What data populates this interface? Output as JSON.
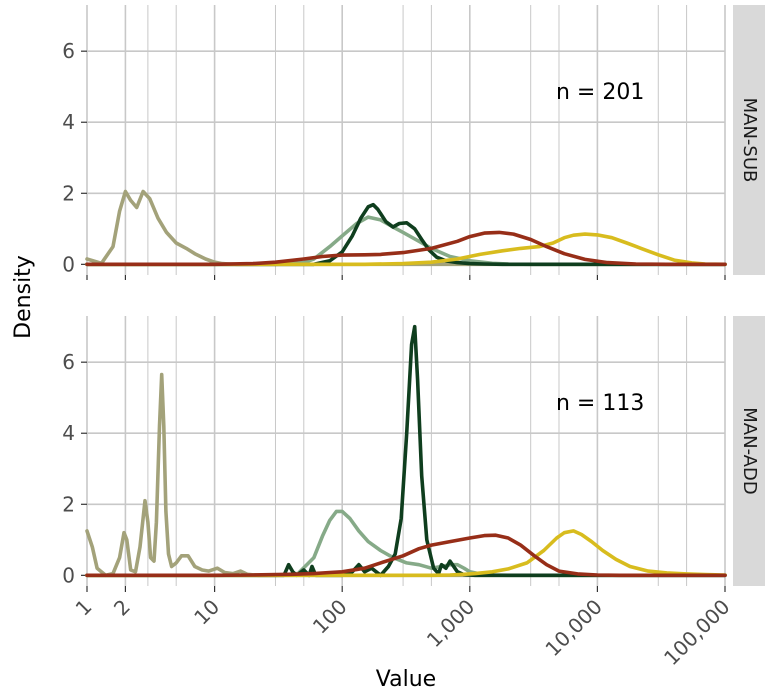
{
  "chart_data": {
    "type": "area",
    "xlabel": "Value",
    "ylabel": "Density",
    "xscale": "log",
    "xlim": [
      1,
      100000
    ],
    "ylim": [
      -0.3,
      7.3
    ],
    "x_ticks": [
      1,
      2,
      10,
      100,
      1000,
      10000,
      100000
    ],
    "x_tick_labels": [
      "1",
      "2",
      "10",
      "100",
      "1,000",
      "10,000",
      "100,000"
    ],
    "y_ticks": [
      0,
      2,
      4,
      6
    ],
    "y_tick_labels": [
      "0",
      "2",
      "4",
      "6"
    ],
    "grid": true,
    "colors": {
      "olive": "#a3a27a",
      "darkgreen": "#0f3e1e",
      "sage": "#86aa88",
      "gold": "#d8bc1e",
      "rust": "#972e18",
      "strip_bg": "#d9d9d9",
      "grid": "#c8c8c8"
    },
    "panels": [
      {
        "strip": "MAN-SUB",
        "annotation": "n = 201",
        "series": [
          {
            "color": "olive",
            "x": [
              1,
              1.3,
              1.6,
              1.8,
              2,
              2.2,
              2.45,
              2.75,
              3.1,
              3.6,
              4.2,
              5,
              6,
              7,
              8.5,
              10,
              11.5,
              13,
              15,
              20,
              30,
              100,
              100000
            ],
            "y": [
              0.15,
              0.03,
              0.5,
              1.5,
              2.05,
              1.8,
              1.6,
              2.05,
              1.85,
              1.3,
              0.9,
              0.6,
              0.45,
              0.3,
              0.15,
              0.06,
              0.02,
              0.01,
              0,
              0,
              0,
              0,
              0
            ]
          },
          {
            "color": "sage",
            "x": [
              1,
              30,
              40,
              50,
              60,
              80,
              100,
              130,
              160,
              200,
              250,
              300,
              400,
              500,
              700,
              1000,
              1500,
              2000,
              3000,
              100000
            ],
            "y": [
              0,
              0,
              0.02,
              0.05,
              0.15,
              0.5,
              0.8,
              1.15,
              1.33,
              1.25,
              1.05,
              0.9,
              0.65,
              0.45,
              0.22,
              0.1,
              0.03,
              0.01,
              0,
              0
            ]
          },
          {
            "color": "darkgreen",
            "x": [
              1,
              60,
              80,
              100,
              120,
              140,
              160,
              175,
              190,
              220,
              250,
              280,
              320,
              370,
              420,
              480,
              550,
              650,
              800,
              1000,
              1300,
              1800,
              100000
            ],
            "y": [
              0,
              0,
              0.1,
              0.35,
              0.8,
              1.3,
              1.62,
              1.68,
              1.55,
              1.2,
              1.05,
              1.15,
              1.17,
              1.0,
              0.7,
              0.4,
              0.2,
              0.1,
              0.05,
              0.02,
              0.01,
              0,
              0
            ]
          },
          {
            "color": "gold",
            "x": [
              1,
              150,
              300,
              500,
              800,
              1200,
              1800,
              2500,
              3500,
              4500,
              5500,
              6500,
              8000,
              10000,
              13000,
              17000,
              22000,
              30000,
              40000,
              55000,
              70000,
              100000
            ],
            "y": [
              0,
              0,
              0.02,
              0.06,
              0.15,
              0.28,
              0.38,
              0.45,
              0.5,
              0.6,
              0.75,
              0.82,
              0.85,
              0.83,
              0.75,
              0.6,
              0.45,
              0.27,
              0.12,
              0.04,
              0.01,
              0
            ]
          },
          {
            "color": "rust",
            "x": [
              1,
              10,
              20,
              30,
              50,
              70,
              100,
              150,
              200,
              300,
              500,
              800,
              1000,
              1300,
              1700,
              2200,
              3000,
              4000,
              5500,
              8000,
              12000,
              20000,
              35000,
              100000
            ],
            "y": [
              0,
              0,
              0.02,
              0.06,
              0.15,
              0.22,
              0.26,
              0.27,
              0.28,
              0.33,
              0.45,
              0.65,
              0.78,
              0.88,
              0.9,
              0.85,
              0.7,
              0.5,
              0.3,
              0.14,
              0.05,
              0.01,
              0,
              0
            ]
          }
        ]
      },
      {
        "strip": "MAN-ADD",
        "annotation": "n = 113",
        "series": [
          {
            "color": "olive",
            "x": [
              1,
              1.1,
              1.2,
              1.4,
              1.6,
              1.8,
              1.95,
              2.05,
              2.2,
              2.4,
              2.6,
              2.85,
              3.0,
              3.15,
              3.35,
              3.5,
              3.7,
              3.85,
              4.0,
              4.15,
              4.35,
              4.6,
              5,
              5.5,
              6.2,
              7,
              8,
              9,
              10.5,
              12,
              14,
              16,
              18,
              22,
              30,
              100000
            ],
            "y": [
              1.25,
              0.8,
              0.2,
              0,
              0.05,
              0.5,
              1.2,
              1.0,
              0.15,
              0.1,
              0.8,
              2.1,
              1.5,
              0.5,
              0.4,
              1.5,
              4.2,
              5.65,
              4.2,
              1.8,
              0.6,
              0.25,
              0.35,
              0.55,
              0.55,
              0.25,
              0.15,
              0.12,
              0.2,
              0.08,
              0.05,
              0.12,
              0.03,
              0,
              0,
              0
            ]
          },
          {
            "color": "sage",
            "x": [
              1,
              30,
              45,
              60,
              70,
              80,
              90,
              100,
              115,
              135,
              160,
              200,
              250,
              320,
              400,
              500,
              600,
              700,
              800,
              900,
              1000,
              1200,
              1500,
              2000,
              100000
            ],
            "y": [
              0,
              0,
              0.05,
              0.5,
              1.1,
              1.55,
              1.8,
              1.8,
              1.6,
              1.25,
              0.95,
              0.7,
              0.5,
              0.35,
              0.3,
              0.2,
              0.25,
              0.3,
              0.3,
              0.2,
              0.1,
              0.04,
              0.01,
              0,
              0
            ]
          },
          {
            "color": "darkgreen",
            "x": [
              1,
              35,
              38,
              41,
              44,
              50,
              55,
              58,
              62,
              70,
              100,
              120,
              135,
              150,
              170,
              200,
              230,
              260,
              290,
              320,
              350,
              370,
              390,
              420,
              460,
              520,
              570,
              600,
              650,
              700,
              800,
              900,
              1100,
              100000
            ],
            "y": [
              0,
              0,
              0.3,
              0.1,
              0,
              0.15,
              0,
              0.25,
              0,
              0,
              0,
              0.1,
              0.3,
              0.1,
              0.2,
              0,
              0.25,
              0.6,
              1.6,
              4.0,
              6.5,
              7.0,
              5.5,
              2.8,
              1.0,
              0.2,
              0.05,
              0.3,
              0.2,
              0.4,
              0.1,
              0.02,
              0,
              0
            ]
          },
          {
            "color": "gold",
            "x": [
              1,
              500,
              700,
              900,
              1100,
              1500,
              2000,
              2800,
              3800,
              4800,
              5500,
              6500,
              7500,
              9000,
              11000,
              14000,
              18000,
              25000,
              35000,
              50000,
              70000,
              100000
            ],
            "y": [
              0,
              0,
              0.01,
              0.03,
              0.05,
              0.1,
              0.18,
              0.35,
              0.7,
              1.05,
              1.2,
              1.25,
              1.15,
              0.95,
              0.7,
              0.45,
              0.25,
              0.12,
              0.07,
              0.04,
              0.02,
              0.01
            ]
          },
          {
            "color": "rust",
            "x": [
              1,
              10,
              20,
              40,
              60,
              80,
              100,
              150,
              200,
              300,
              400,
              500,
              700,
              1000,
              1300,
              1600,
              2000,
              2500,
              3200,
              4000,
              5000,
              7000,
              10000,
              15000,
              100000
            ],
            "y": [
              0,
              0,
              0.01,
              0.03,
              0.05,
              0.08,
              0.1,
              0.2,
              0.35,
              0.55,
              0.75,
              0.85,
              0.95,
              1.05,
              1.12,
              1.13,
              1.05,
              0.85,
              0.55,
              0.3,
              0.12,
              0.04,
              0.01,
              0,
              0
            ]
          }
        ]
      }
    ]
  }
}
